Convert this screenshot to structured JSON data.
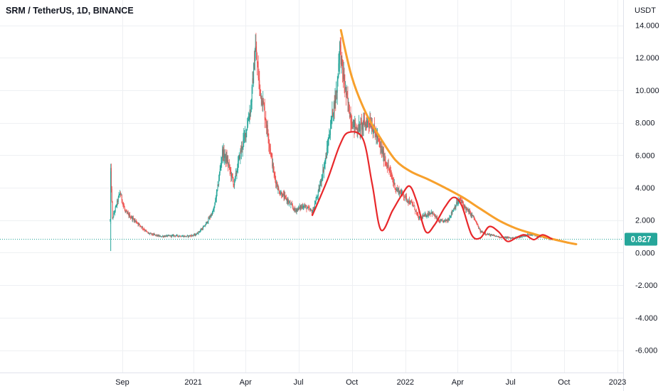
{
  "header": {
    "title": "SRM / TetherUS, 1D, BINANCE"
  },
  "price_axis": {
    "unit": "USDT",
    "current_price_label": "0.827",
    "current_price_color": "#26a69a"
  },
  "colors": {
    "up": "#26a69a",
    "down": "#ef5350",
    "trend_line": "#f7a02c",
    "wave_line": "#e8282b"
  },
  "chart_data": {
    "type": "candlestick",
    "title": "SRM / TetherUS, 1D, BINANCE",
    "symbol": "SRM / TetherUS",
    "interval": "1D",
    "exchange": "BINANCE",
    "ylabel": "USDT",
    "ylim": [
      -7,
      14.2
    ],
    "xlim": [
      "2020-07-22",
      "2023-01-22"
    ],
    "y_ticks": [
      "14.000",
      "12.000",
      "10.000",
      "8.000",
      "6.000",
      "4.000",
      "2.000",
      "0.000",
      "-2.000",
      "-4.000",
      "-6.000"
    ],
    "y_tick_values": [
      14,
      12,
      10,
      8,
      6,
      4,
      2,
      0,
      -2,
      -4,
      -6
    ],
    "x_ticks": [
      {
        "label": "Sep",
        "date": "2020-09-01"
      },
      {
        "label": "2021",
        "date": "2021-01-01"
      },
      {
        "label": "Apr",
        "date": "2021-04-01"
      },
      {
        "label": "Jul",
        "date": "2021-07-01"
      },
      {
        "label": "Oct",
        "date": "2021-10-01"
      },
      {
        "label": "2022",
        "date": "2022-01-01"
      },
      {
        "label": "Apr",
        "date": "2022-04-01"
      },
      {
        "label": "Jul",
        "date": "2022-07-01"
      },
      {
        "label": "Oct",
        "date": "2022-10-01"
      },
      {
        "label": "2023",
        "date": "2023-01-01"
      }
    ],
    "last_price": 0.827,
    "grid": true,
    "price_anchors": [
      [
        "2020-08-11",
        2.0
      ],
      [
        "2020-08-12",
        5.0
      ],
      [
        "2020-08-15",
        2.1
      ],
      [
        "2020-08-28",
        3.7
      ],
      [
        "2020-09-06",
        2.5
      ],
      [
        "2020-09-25",
        1.9
      ],
      [
        "2020-10-15",
        1.2
      ],
      [
        "2020-11-05",
        1.0
      ],
      [
        "2020-12-01",
        1.05
      ],
      [
        "2020-12-20",
        1.0
      ],
      [
        "2021-01-05",
        1.1
      ],
      [
        "2021-01-20",
        1.6
      ],
      [
        "2021-02-05",
        2.6
      ],
      [
        "2021-02-12",
        4.0
      ],
      [
        "2021-02-20",
        6.2
      ],
      [
        "2021-03-01",
        5.6
      ],
      [
        "2021-03-12",
        4.2
      ],
      [
        "2021-03-22",
        6.0
      ],
      [
        "2021-04-01",
        7.4
      ],
      [
        "2021-04-10",
        9.0
      ],
      [
        "2021-04-18",
        12.6
      ],
      [
        "2021-04-25",
        10.2
      ],
      [
        "2021-05-02",
        9.0
      ],
      [
        "2021-05-10",
        7.2
      ],
      [
        "2021-05-20",
        4.8
      ],
      [
        "2021-05-28",
        3.8
      ],
      [
        "2021-06-10",
        3.3
      ],
      [
        "2021-06-25",
        2.6
      ],
      [
        "2021-07-10",
        2.9
      ],
      [
        "2021-07-25",
        2.5
      ],
      [
        "2021-08-05",
        3.8
      ],
      [
        "2021-08-18",
        6.0
      ],
      [
        "2021-08-28",
        8.5
      ],
      [
        "2021-09-05",
        10.0
      ],
      [
        "2021-09-10",
        12.8
      ],
      [
        "2021-09-14",
        11.4
      ],
      [
        "2021-09-22",
        9.5
      ],
      [
        "2021-10-01",
        8.0
      ],
      [
        "2021-10-10",
        7.6
      ],
      [
        "2021-10-22",
        7.9
      ],
      [
        "2021-11-01",
        8.1
      ],
      [
        "2021-11-12",
        7.2
      ],
      [
        "2021-11-25",
        5.9
      ],
      [
        "2021-12-06",
        4.9
      ],
      [
        "2021-12-16",
        3.9
      ],
      [
        "2021-12-28",
        3.6
      ],
      [
        "2022-01-06",
        3.2
      ],
      [
        "2022-01-15",
        2.9
      ],
      [
        "2022-01-24",
        2.1
      ],
      [
        "2022-02-05",
        2.3
      ],
      [
        "2022-02-15",
        2.5
      ],
      [
        "2022-02-28",
        1.9
      ],
      [
        "2022-03-15",
        2.0
      ],
      [
        "2022-03-28",
        2.9
      ],
      [
        "2022-04-05",
        3.3
      ],
      [
        "2022-04-15",
        2.7
      ],
      [
        "2022-04-28",
        2.2
      ],
      [
        "2022-05-10",
        1.3
      ],
      [
        "2022-05-25",
        1.1
      ],
      [
        "2022-06-15",
        0.95
      ],
      [
        "2022-07-05",
        0.9
      ],
      [
        "2022-07-20",
        1.0
      ],
      [
        "2022-08-05",
        1.15
      ],
      [
        "2022-08-25",
        0.95
      ],
      [
        "2022-09-05",
        0.85
      ],
      [
        "2022-09-12",
        0.827
      ]
    ],
    "trend_line_points": [
      [
        "2021-09-12",
        13.7
      ],
      [
        "2021-10-01",
        10.8
      ],
      [
        "2021-10-25",
        8.6
      ],
      [
        "2021-11-20",
        7.0
      ],
      [
        "2021-12-15",
        5.7
      ],
      [
        "2022-01-10",
        5.0
      ],
      [
        "2022-02-10",
        4.5
      ],
      [
        "2022-03-10",
        4.0
      ],
      [
        "2022-04-10",
        3.4
      ],
      [
        "2022-05-10",
        2.7
      ],
      [
        "2022-06-10",
        2.0
      ],
      [
        "2022-07-10",
        1.5
      ],
      [
        "2022-08-10",
        1.15
      ],
      [
        "2022-09-10",
        0.85
      ],
      [
        "2022-10-10",
        0.6
      ],
      [
        "2022-10-22",
        0.52
      ]
    ],
    "wave_line_points": [
      [
        "2021-07-25",
        2.3
      ],
      [
        "2021-08-20",
        4.5
      ],
      [
        "2021-09-10",
        6.6
      ],
      [
        "2021-09-25",
        7.4
      ],
      [
        "2021-10-20",
        7.0
      ],
      [
        "2021-11-05",
        4.2
      ],
      [
        "2021-11-20",
        1.4
      ],
      [
        "2021-12-10",
        2.6
      ],
      [
        "2021-12-25",
        3.5
      ],
      [
        "2022-01-08",
        4.1
      ],
      [
        "2022-01-20",
        3.2
      ],
      [
        "2022-02-05",
        1.3
      ],
      [
        "2022-02-20",
        1.7
      ],
      [
        "2022-03-10",
        2.8
      ],
      [
        "2022-03-25",
        3.4
      ],
      [
        "2022-04-08",
        2.9
      ],
      [
        "2022-04-25",
        1.1
      ],
      [
        "2022-05-10",
        0.9
      ],
      [
        "2022-05-25",
        1.6
      ],
      [
        "2022-06-10",
        1.3
      ],
      [
        "2022-06-25",
        0.7
      ],
      [
        "2022-07-10",
        0.9
      ],
      [
        "2022-07-25",
        1.1
      ],
      [
        "2022-08-10",
        0.8
      ],
      [
        "2022-08-25",
        1.1
      ],
      [
        "2022-09-10",
        0.85
      ]
    ]
  }
}
